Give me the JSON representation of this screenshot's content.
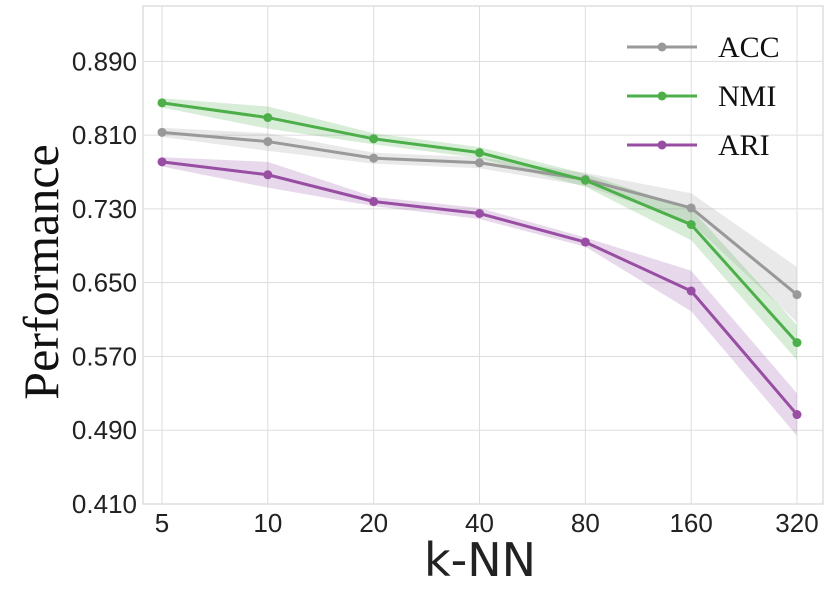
{
  "chart_data": {
    "type": "line",
    "xlabel": "k-NN",
    "ylabel": "Performance",
    "categories": [
      "5",
      "10",
      "20",
      "40",
      "80",
      "160",
      "320"
    ],
    "yticks": [
      0.41,
      0.49,
      0.57,
      0.65,
      0.73,
      0.81,
      0.89
    ],
    "ytick_labels": [
      "0.410",
      "0.490",
      "0.570",
      "0.650",
      "0.730",
      "0.810",
      "0.890"
    ],
    "ylim": [
      0.41,
      0.95
    ],
    "grid": true,
    "legend_position": "top-right",
    "series": [
      {
        "name": "ACC",
        "color": "#999999",
        "values": [
          0.813,
          0.803,
          0.785,
          0.78,
          0.762,
          0.731,
          0.637
        ],
        "lower": [
          0.808,
          0.793,
          0.779,
          0.774,
          0.755,
          0.715,
          0.607
        ],
        "upper": [
          0.818,
          0.812,
          0.791,
          0.786,
          0.769,
          0.747,
          0.667
        ]
      },
      {
        "name": "NMI",
        "color": "#4daf4a",
        "values": [
          0.845,
          0.829,
          0.806,
          0.791,
          0.761,
          0.713,
          0.585
        ],
        "lower": [
          0.84,
          0.817,
          0.8,
          0.785,
          0.754,
          0.696,
          0.566
        ],
        "upper": [
          0.85,
          0.841,
          0.812,
          0.797,
          0.768,
          0.73,
          0.604
        ]
      },
      {
        "name": "ARI",
        "color": "#984ea3",
        "values": [
          0.781,
          0.767,
          0.738,
          0.725,
          0.694,
          0.641,
          0.507
        ],
        "lower": [
          0.776,
          0.753,
          0.733,
          0.719,
          0.689,
          0.619,
          0.484
        ],
        "upper": [
          0.786,
          0.781,
          0.743,
          0.731,
          0.699,
          0.663,
          0.53
        ]
      }
    ]
  }
}
